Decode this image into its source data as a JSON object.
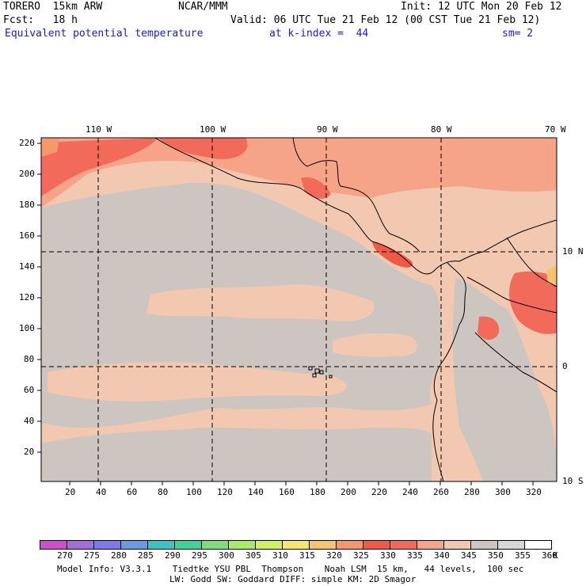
{
  "header": {
    "model": "TORERO  15km ARW",
    "center": "NCAR/MMM",
    "init": "Init: 12 UTC Mon 20 Feb 12",
    "fcst": "Fcst:   18 h",
    "valid": "Valid: 06 UTC Tue 21 Feb 12 (00 CST Tue 21 Feb 12)",
    "field": "Equivalent potential temperature",
    "level": "at k-index =  44",
    "smooth": "sm= 2"
  },
  "map": {
    "top_lon_labels": [
      "110 W",
      "100 W",
      "90 W",
      "80 W",
      "70 W"
    ],
    "right_lat_labels": [
      "10 N",
      "0",
      "10 S"
    ],
    "y_ticks": [
      "220",
      "200",
      "180",
      "160",
      "140",
      "120",
      "100",
      "80",
      "60",
      "40",
      "20"
    ],
    "x_ticks": [
      "20",
      "40",
      "60",
      "80",
      "100",
      "120",
      "140",
      "160",
      "180",
      "200",
      "220",
      "240",
      "260",
      "280",
      "300",
      "320"
    ]
  },
  "colorbar": {
    "labels": [
      "270",
      "275",
      "280",
      "285",
      "290",
      "295",
      "300",
      "305",
      "310",
      "315",
      "320",
      "325",
      "330",
      "335",
      "340",
      "345",
      "350",
      "355",
      "360"
    ],
    "unit": "K",
    "colors": [
      "#cc4fcc",
      "#a070d8",
      "#7c7ce8",
      "#6a9ae6",
      "#3cc2c2",
      "#3cd49a",
      "#7ae07a",
      "#a8ec66",
      "#d4f060",
      "#f6e66a",
      "#f6c46a",
      "#f6986a",
      "#ee5a46",
      "#f26a5a",
      "#f6a488",
      "#f2c8b0",
      "#cdc5c0",
      "#d6d6d6",
      "#ffffff"
    ]
  },
  "footer": {
    "line1": "Model Info: V3.3.1    Tiedtke YSU PBL  Thompson    Noah LSM  15 km,   44 levels,  100 sec",
    "line2": "LW: Godd SW: Goddard DIFF: simple KM: 2D Smagor"
  }
}
